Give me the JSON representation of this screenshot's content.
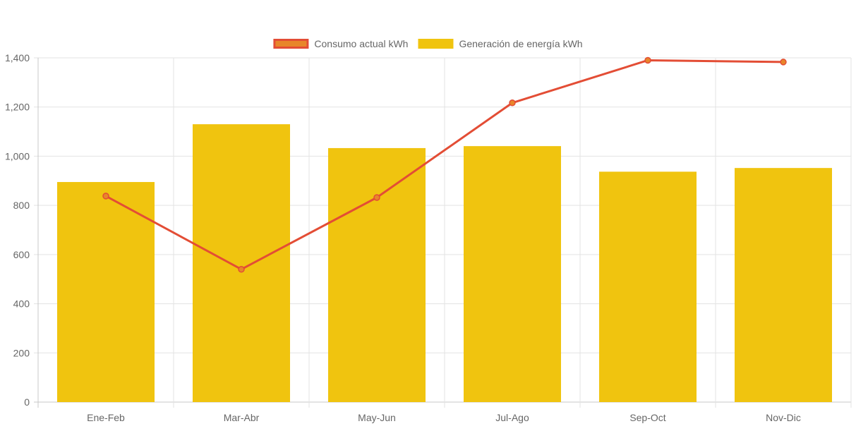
{
  "chart_data": {
    "type": "bar",
    "categories": [
      "Ene-Feb",
      "Mar-Abr",
      "May-Jun",
      "Jul-Ago",
      "Sep-Oct",
      "Nov-Dic"
    ],
    "ylim": [
      0,
      1400
    ],
    "yticks": [
      0,
      200,
      400,
      600,
      800,
      1000,
      1200,
      1400
    ],
    "ytick_labels": [
      "0",
      "200",
      "400",
      "600",
      "800",
      "1,000",
      "1,200",
      "1,400"
    ],
    "grid": true,
    "legend_position": "top",
    "series": [
      {
        "name": "Consumo actual kWh",
        "type": "line",
        "values": [
          838,
          540,
          832,
          1217,
          1390,
          1383
        ],
        "color": "#e34d35",
        "marker_color": "#e8862a"
      },
      {
        "name": "Generación de energía kWh",
        "type": "bar",
        "values": [
          895,
          1130,
          1033,
          1041,
          937,
          952
        ],
        "color": "#f0c40f"
      }
    ],
    "legend": [
      {
        "label": "Consumo actual kWh",
        "fill": "#e8862a",
        "stroke": "#e34d35"
      },
      {
        "label": "Generación de energía kWh",
        "fill": "#f0c40f",
        "stroke": "#f0c40f"
      }
    ]
  },
  "colors": {
    "grid": "#e3e3e3",
    "axis": "#c8c8c8",
    "tick_text": "#666666"
  }
}
